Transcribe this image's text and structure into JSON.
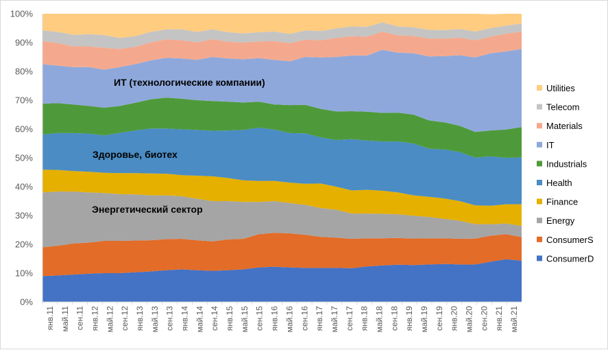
{
  "chart_data": {
    "type": "area",
    "stacked": "percent",
    "ylim": [
      0,
      100
    ],
    "y_ticks": [
      "0%",
      "10%",
      "20%",
      "30%",
      "40%",
      "50%",
      "60%",
      "70%",
      "80%",
      "90%",
      "100%"
    ],
    "x_ticks": [
      "янв.11",
      "май.11",
      "сен.11",
      "янв.12",
      "май.12",
      "сен.12",
      "янв.13",
      "май.13",
      "сен.13",
      "янв.14",
      "май.14",
      "сен.14",
      "янв.15",
      "май.15",
      "сен.15",
      "янв.16",
      "май.16",
      "сен.16",
      "янв.17",
      "май.17",
      "сен.17",
      "янв.18",
      "май.18",
      "сен.18",
      "янв.19",
      "май.19",
      "сен.19",
      "янв.20",
      "май.20",
      "сен.20",
      "янв.21",
      "май.21"
    ],
    "grid": false,
    "legend_position": "right",
    "series": [
      {
        "name": "ConsumerD",
        "color": "#4472C4",
        "values": [
          9.0,
          9.2,
          9.5,
          9.8,
          10.0,
          10.0,
          10.3,
          10.6,
          11.0,
          11.3,
          11.0,
          10.8,
          11.0,
          11.3,
          12.0,
          12.2,
          12.0,
          11.8,
          11.8,
          11.8,
          11.7,
          12.3,
          12.7,
          12.9,
          12.8,
          13.0,
          13.2,
          13.0,
          13.0,
          14.0,
          14.8,
          14.3
        ]
      },
      {
        "name": "ConsumerS",
        "color": "#E26C28",
        "values": [
          10.0,
          10.3,
          10.8,
          10.8,
          11.2,
          11.2,
          11.0,
          10.8,
          10.8,
          10.6,
          10.4,
          10.2,
          10.7,
          10.6,
          11.5,
          11.8,
          11.8,
          11.5,
          10.8,
          10.5,
          10.2,
          9.8,
          9.4,
          9.3,
          9.2,
          9.1,
          8.9,
          8.9,
          9.0,
          9.0,
          8.7,
          8.2
        ]
      },
      {
        "name": "Energy",
        "color": "#A5A5A5",
        "values": [
          19.0,
          18.8,
          18.0,
          17.4,
          16.6,
          16.2,
          16.0,
          15.6,
          15.2,
          14.8,
          14.4,
          14.0,
          13.3,
          12.8,
          11.2,
          11.0,
          10.5,
          10.4,
          10.0,
          9.7,
          8.8,
          8.6,
          8.5,
          8.2,
          7.9,
          7.4,
          6.7,
          6.3,
          5.0,
          4.0,
          3.7,
          3.9
        ]
      },
      {
        "name": "Finance",
        "color": "#E5B000",
        "values": [
          7.9,
          7.5,
          7.1,
          7.2,
          7.0,
          7.3,
          7.4,
          7.6,
          7.5,
          7.3,
          8.0,
          8.6,
          8.0,
          7.5,
          7.3,
          7.0,
          7.1,
          7.3,
          8.5,
          8.0,
          8.0,
          8.2,
          8.0,
          7.6,
          7.1,
          7.0,
          7.1,
          6.8,
          6.5,
          6.4,
          6.7,
          7.5
        ]
      },
      {
        "name": "Health",
        "color": "#4A8CC3",
        "values": [
          12.2,
          12.8,
          13.2,
          13.2,
          13.0,
          14.0,
          14.8,
          15.6,
          15.7,
          15.9,
          15.9,
          15.8,
          16.5,
          17.5,
          18.5,
          17.8,
          17.2,
          17.5,
          16.0,
          16.2,
          17.8,
          17.1,
          17.1,
          17.7,
          18.0,
          16.7,
          17.0,
          17.0,
          16.6,
          17.1,
          16.1,
          16.3
        ]
      },
      {
        "name": "Industrials",
        "color": "#4E9A3A",
        "values": [
          10.7,
          10.4,
          9.9,
          9.6,
          9.6,
          9.3,
          9.6,
          10.1,
          10.7,
          10.6,
          10.3,
          10.3,
          10.0,
          9.5,
          9.0,
          8.7,
          9.7,
          9.9,
          9.9,
          9.9,
          9.7,
          10.0,
          9.9,
          10.0,
          10.0,
          9.8,
          9.4,
          9.1,
          8.9,
          9.0,
          9.8,
          10.5
        ]
      },
      {
        "name": "IT",
        "color": "#8FA8DB",
        "values": [
          13.7,
          13.0,
          13.0,
          13.5,
          13.2,
          13.5,
          13.4,
          13.5,
          13.8,
          14.0,
          14.0,
          15.3,
          15.0,
          15.0,
          15.1,
          15.5,
          15.2,
          16.6,
          17.8,
          18.9,
          19.3,
          19.5,
          21.9,
          20.8,
          21.3,
          22.2,
          23.0,
          24.5,
          25.8,
          26.8,
          27.1,
          27.1
        ]
      },
      {
        "name": "Materials",
        "color": "#F4A98E",
        "values": [
          8.0,
          7.8,
          7.2,
          7.2,
          7.6,
          6.3,
          6.0,
          6.3,
          6.4,
          6.3,
          6.1,
          6.2,
          5.8,
          5.8,
          5.8,
          6.5,
          6.3,
          6.0,
          6.0,
          6.6,
          6.7,
          6.6,
          6.3,
          6.0,
          6.0,
          6.2,
          6.1,
          6.1,
          6.0,
          5.8,
          6.2,
          6.0
        ]
      },
      {
        "name": "Telecom",
        "color": "#C4C4C4",
        "values": [
          3.7,
          3.9,
          4.0,
          4.2,
          4.4,
          3.8,
          3.7,
          3.6,
          3.5,
          3.8,
          3.6,
          3.4,
          3.3,
          3.2,
          3.2,
          3.3,
          3.2,
          3.2,
          3.2,
          3.3,
          3.4,
          3.4,
          3.2,
          3.1,
          3.0,
          3.0,
          2.9,
          3.0,
          3.0,
          2.9,
          2.8,
          2.8
        ]
      },
      {
        "name": "Utilities",
        "color": "#FFCC80",
        "values": [
          5.8,
          6.3,
          7.3,
          7.1,
          7.4,
          8.4,
          7.8,
          6.3,
          5.4,
          5.4,
          6.3,
          5.4,
          6.4,
          6.8,
          6.4,
          6.2,
          7.0,
          5.8,
          6.0,
          5.1,
          4.4,
          4.5,
          4.0,
          4.4,
          4.7,
          5.6,
          5.7,
          5.3,
          6.2,
          4.8,
          4.1,
          3.4
        ]
      }
    ],
    "annotations": [
      {
        "text": "ИТ (технологические компании)"
      },
      {
        "text": "Здоровье, биотех"
      },
      {
        "text": "Энергетический сектор"
      }
    ]
  }
}
